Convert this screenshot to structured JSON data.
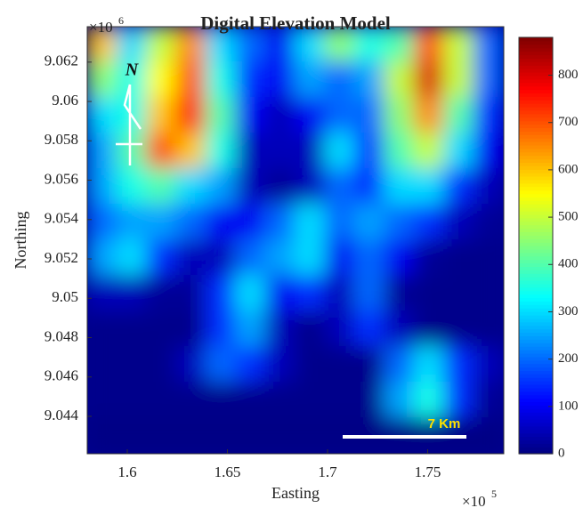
{
  "chart_data": {
    "type": "heatmap",
    "title": "Digital Elevation Model",
    "xlabel": "Easting",
    "ylabel": "Northing",
    "x_multiplier": {
      "base": "×10",
      "exp": "5"
    },
    "y_multiplier": {
      "base": "×10",
      "exp": "6"
    },
    "xlim": [
      1.58,
      1.788
    ],
    "ylim": [
      9.0421,
      9.0638
    ],
    "xticks": [
      1.6,
      1.65,
      1.7,
      1.75
    ],
    "yticks": [
      9.044,
      9.046,
      9.048,
      9.05,
      9.052,
      9.054,
      9.056,
      9.058,
      9.06,
      9.062
    ],
    "clim": [
      0,
      880
    ],
    "cticks": [
      0,
      100,
      200,
      300,
      400,
      500,
      600,
      700,
      800
    ],
    "colormap": "jet",
    "north_label": "N",
    "scale_label": "7 Km",
    "z": [
      [
        600,
        300,
        500,
        650,
        300,
        200,
        100,
        300,
        450,
        350,
        400,
        700,
        500,
        200
      ],
      [
        450,
        350,
        550,
        700,
        350,
        150,
        100,
        250,
        200,
        250,
        500,
        800,
        500,
        200
      ],
      [
        300,
        350,
        600,
        750,
        400,
        100,
        50,
        100,
        200,
        200,
        450,
        650,
        400,
        150
      ],
      [
        250,
        400,
        700,
        600,
        350,
        50,
        50,
        50,
        300,
        150,
        400,
        500,
        300,
        100
      ],
      [
        250,
        350,
        400,
        300,
        250,
        50,
        20,
        50,
        200,
        150,
        300,
        300,
        150,
        50
      ],
      [
        200,
        250,
        250,
        200,
        100,
        100,
        200,
        300,
        200,
        250,
        200,
        150,
        50,
        20
      ],
      [
        250,
        300,
        150,
        50,
        50,
        200,
        250,
        300,
        100,
        200,
        100,
        20,
        10,
        10
      ],
      [
        50,
        50,
        20,
        20,
        150,
        300,
        100,
        150,
        50,
        200,
        20,
        10,
        10,
        10
      ],
      [
        10,
        10,
        10,
        10,
        150,
        250,
        50,
        10,
        50,
        150,
        50,
        10,
        10,
        10
      ],
      [
        10,
        10,
        10,
        50,
        200,
        150,
        50,
        10,
        10,
        10,
        200,
        300,
        150,
        50
      ],
      [
        10,
        10,
        10,
        10,
        10,
        10,
        10,
        10,
        10,
        10,
        250,
        350,
        150,
        20
      ],
      [
        5,
        5,
        5,
        5,
        5,
        5,
        5,
        5,
        5,
        5,
        5,
        5,
        5,
        5
      ]
    ]
  }
}
